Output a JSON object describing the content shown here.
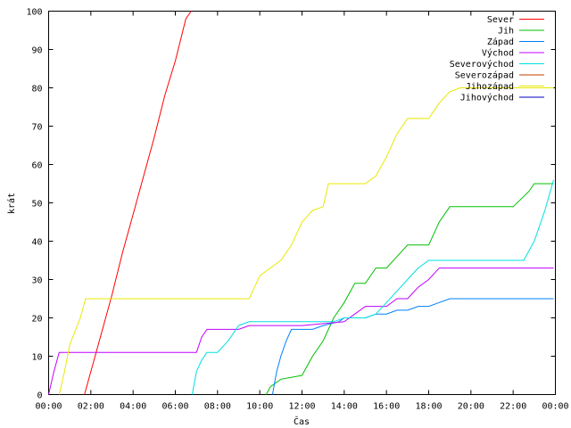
{
  "chart_data": {
    "type": "line",
    "xlabel": "Čas",
    "ylabel": "krát",
    "ylim": [
      0,
      100
    ],
    "xlim": [
      "00:00",
      "24:00"
    ],
    "grid": false,
    "legend_placement": "top-right",
    "x_ticks": [
      "00:00",
      "02:00",
      "04:00",
      "06:00",
      "08:00",
      "10:00",
      "12:00",
      "14:00",
      "16:00",
      "18:00",
      "20:00",
      "22:00",
      "00:00"
    ],
    "y_ticks": [
      "0",
      "10",
      "20",
      "30",
      "40",
      "50",
      "60",
      "70",
      "80",
      "90",
      "100"
    ],
    "series": [
      {
        "name": "Sever",
        "color": "#ff0000",
        "points": [
          [
            "01:42",
            0
          ],
          [
            "02:00",
            6
          ],
          [
            "02:30",
            16
          ],
          [
            "03:00",
            26
          ],
          [
            "03:30",
            37
          ],
          [
            "04:00",
            47
          ],
          [
            "04:30",
            57
          ],
          [
            "05:00",
            67
          ],
          [
            "05:30",
            78
          ],
          [
            "06:00",
            87
          ],
          [
            "06:30",
            98
          ],
          [
            "06:45",
            100
          ]
        ]
      },
      {
        "name": "Jih",
        "color": "#00c000",
        "points": [
          [
            "10:18",
            0
          ],
          [
            "10:30",
            2
          ],
          [
            "11:00",
            4
          ],
          [
            "12:00",
            5
          ],
          [
            "12:30",
            10
          ],
          [
            "13:00",
            14
          ],
          [
            "13:30",
            20
          ],
          [
            "14:00",
            24
          ],
          [
            "14:30",
            29
          ],
          [
            "15:00",
            29
          ],
          [
            "15:30",
            33
          ],
          [
            "16:00",
            33
          ],
          [
            "16:30",
            36
          ],
          [
            "17:00",
            39
          ],
          [
            "18:00",
            39
          ],
          [
            "18:30",
            45
          ],
          [
            "19:00",
            49
          ],
          [
            "21:00",
            49
          ],
          [
            "22:00",
            49
          ],
          [
            "22:45",
            53
          ],
          [
            "23:00",
            55
          ],
          [
            "23:55",
            55
          ]
        ]
      },
      {
        "name": "Západ",
        "color": "#0080ff",
        "points": [
          [
            "10:36",
            0
          ],
          [
            "10:48",
            6
          ],
          [
            "11:00",
            10
          ],
          [
            "11:15",
            14
          ],
          [
            "11:30",
            17
          ],
          [
            "12:00",
            17
          ],
          [
            "12:30",
            17
          ],
          [
            "13:00",
            18
          ],
          [
            "13:45",
            19
          ],
          [
            "14:00",
            20
          ],
          [
            "15:00",
            20
          ],
          [
            "15:30",
            21
          ],
          [
            "16:00",
            21
          ],
          [
            "16:30",
            22
          ],
          [
            "17:00",
            22
          ],
          [
            "17:30",
            23
          ],
          [
            "18:00",
            23
          ],
          [
            "18:30",
            24
          ],
          [
            "19:00",
            25
          ],
          [
            "21:00",
            25
          ],
          [
            "23:55",
            25
          ]
        ]
      },
      {
        "name": "Východ",
        "color": "#c000ff",
        "points": [
          [
            "00:00",
            0
          ],
          [
            "00:15",
            6
          ],
          [
            "00:30",
            11
          ],
          [
            "01:00",
            11
          ],
          [
            "07:00",
            11
          ],
          [
            "07:15",
            15
          ],
          [
            "07:30",
            17
          ],
          [
            "08:00",
            17
          ],
          [
            "09:00",
            17
          ],
          [
            "09:30",
            18
          ],
          [
            "12:00",
            18
          ],
          [
            "14:00",
            19
          ],
          [
            "14:30",
            21
          ],
          [
            "15:00",
            23
          ],
          [
            "16:00",
            23
          ],
          [
            "16:30",
            25
          ],
          [
            "17:00",
            25
          ],
          [
            "17:30",
            28
          ],
          [
            "18:00",
            30
          ],
          [
            "18:30",
            33
          ],
          [
            "19:00",
            33
          ],
          [
            "21:00",
            33
          ],
          [
            "23:55",
            33
          ]
        ]
      },
      {
        "name": "Severovýchod",
        "color": "#00e0e0",
        "points": [
          [
            "06:48",
            0
          ],
          [
            "07:00",
            6
          ],
          [
            "07:15",
            9
          ],
          [
            "07:30",
            11
          ],
          [
            "08:00",
            11
          ],
          [
            "08:30",
            14
          ],
          [
            "09:00",
            18
          ],
          [
            "09:30",
            19
          ],
          [
            "12:00",
            19
          ],
          [
            "13:30",
            19
          ],
          [
            "14:00",
            20
          ],
          [
            "15:00",
            20
          ],
          [
            "15:30",
            21
          ],
          [
            "16:00",
            24
          ],
          [
            "16:30",
            27
          ],
          [
            "17:00",
            30
          ],
          [
            "17:30",
            33
          ],
          [
            "18:00",
            35
          ],
          [
            "20:00",
            35
          ],
          [
            "22:30",
            35
          ],
          [
            "23:00",
            40
          ],
          [
            "23:30",
            48
          ],
          [
            "23:55",
            56
          ]
        ]
      },
      {
        "name": "Severozápad",
        "color": "#c04000",
        "points": []
      },
      {
        "name": "Jihozápad",
        "color": "#e8e800",
        "points": [
          [
            "00:30",
            0
          ],
          [
            "00:45",
            6
          ],
          [
            "01:00",
            13
          ],
          [
            "01:30",
            20
          ],
          [
            "01:45",
            25
          ],
          [
            "02:00",
            25
          ],
          [
            "04:00",
            25
          ],
          [
            "06:00",
            25
          ],
          [
            "08:00",
            25
          ],
          [
            "09:30",
            25
          ],
          [
            "09:45",
            28
          ],
          [
            "10:00",
            31
          ],
          [
            "10:30",
            33
          ],
          [
            "11:00",
            35
          ],
          [
            "11:30",
            39
          ],
          [
            "12:00",
            45
          ],
          [
            "12:30",
            48
          ],
          [
            "13:00",
            49
          ],
          [
            "13:15",
            55
          ],
          [
            "14:00",
            55
          ],
          [
            "15:00",
            55
          ],
          [
            "15:30",
            57
          ],
          [
            "16:00",
            62
          ],
          [
            "16:30",
            68
          ],
          [
            "17:00",
            72
          ],
          [
            "18:00",
            72
          ],
          [
            "18:30",
            76
          ],
          [
            "19:00",
            79
          ],
          [
            "19:30",
            80
          ],
          [
            "21:00",
            80
          ],
          [
            "23:55",
            80
          ]
        ]
      },
      {
        "name": "Jihovýchod",
        "color": "#0000c0",
        "points": []
      }
    ]
  }
}
